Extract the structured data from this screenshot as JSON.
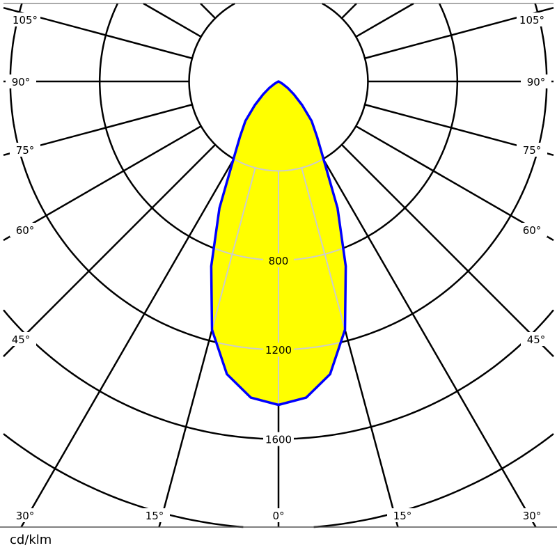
{
  "chart_data": {
    "type": "polar",
    "unit_label": "cd/klm",
    "radial_ticks": [
      400,
      800,
      1200,
      1600,
      2000
    ],
    "radial_tick_labels": [
      "800",
      "1200",
      "1600"
    ],
    "angle_labels": [
      "0°",
      "15°",
      "30°",
      "45°",
      "60°",
      "75°",
      "90°",
      "105°"
    ],
    "angle_step_deg": 15,
    "rmax_visible": 2000,
    "grid": true,
    "series": [
      {
        "angles_deg": [
          0,
          5,
          10,
          15,
          20,
          25,
          30,
          35,
          40,
          45,
          50,
          55,
          60,
          65,
          70,
          90
        ],
        "values": [
          1447,
          1420,
          1330,
          1150,
          880,
          625,
          405,
          300,
          230,
          150,
          90,
          50,
          20,
          5,
          0,
          0
        ],
        "symmetric": true,
        "line_color": "#0000ff",
        "fill_color": "#ffff00"
      }
    ],
    "colors": {
      "grid": "#000000",
      "inner_grid": "#cccccc"
    }
  }
}
